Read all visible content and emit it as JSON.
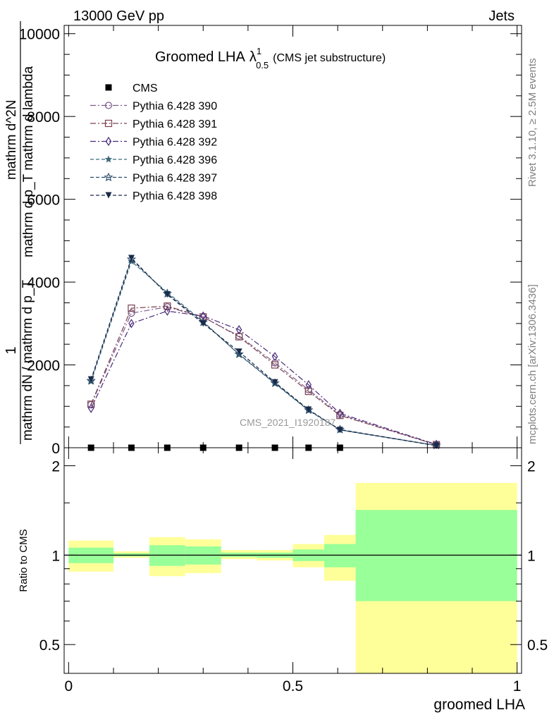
{
  "header": {
    "left": "13000 GeV pp",
    "right": "Jets"
  },
  "side_labels": {
    "rivet": "Rivet 3.1.10, ≥ 2.5M events",
    "site": "mcplots.cern.ch [arXiv:1306.3436]"
  },
  "watermark": "CMS_2021_I1920187",
  "title": {
    "main": "Groomed LHA",
    "lambda": "λ",
    "sup": "1",
    "sub": "0.5",
    "note": "(CMS jet substructure)"
  },
  "ylabel": {
    "numer": "1",
    "denom": "mathrm dN / mathrm d p_T",
    "inner_numer": "mathrm d^2N",
    "inner_denom": "mathrm d p_T mathrm d lambda"
  },
  "ratio_ylabel": "Ratio to CMS",
  "xlabel": "groomed LHA",
  "chart_data": [
    {
      "type": "line",
      "panel": "main",
      "xlim": [
        -0.01,
        1.01
      ],
      "ylim": [
        0,
        10200
      ],
      "yticks": [
        0,
        2000,
        4000,
        6000,
        8000,
        10000
      ],
      "ytick_labels": [
        "0",
        "2000",
        "4000",
        "6000",
        "8000",
        "10000"
      ],
      "x": [
        0.05,
        0.14,
        0.22,
        0.3,
        0.38,
        0.46,
        0.535,
        0.605,
        0.82
      ],
      "series": [
        {
          "name": "CMS",
          "marker": "filled-square",
          "dash": "",
          "color": "#000000",
          "values": [
            0,
            0,
            0,
            0,
            0,
            0,
            0,
            0,
            null
          ]
        },
        {
          "name": "Pythia 6.428 390",
          "marker": "open-circle",
          "dash": "8,3,2,3",
          "color": "#7a5a8a",
          "values": [
            1040,
            3250,
            3400,
            3150,
            2700,
            2050,
            1400,
            800,
            70
          ]
        },
        {
          "name": "Pythia 6.428 391",
          "marker": "open-square",
          "dash": "8,3,2,3",
          "color": "#7a4050",
          "values": [
            1050,
            3370,
            3420,
            3160,
            2680,
            2000,
            1360,
            780,
            75
          ]
        },
        {
          "name": "Pythia 6.428 392",
          "marker": "open-diamond",
          "dash": "8,3,2,3",
          "color": "#4a2a7a",
          "values": [
            950,
            3000,
            3300,
            3180,
            2850,
            2200,
            1520,
            830,
            80
          ]
        },
        {
          "name": "Pythia 6.428 396",
          "marker": "filled-star",
          "dash": "5,3",
          "color": "#3a6a7a",
          "values": [
            1600,
            4500,
            3750,
            3050,
            2250,
            1550,
            900,
            430,
            55
          ]
        },
        {
          "name": "Pythia 6.428 397",
          "marker": "open-star",
          "dash": "5,3",
          "color": "#2a4a6a",
          "values": [
            1620,
            4550,
            3720,
            3030,
            2260,
            1560,
            910,
            440,
            55
          ]
        },
        {
          "name": "Pythia 6.428 398",
          "marker": "filled-triangle-down",
          "dash": "5,3",
          "color": "#1a2a4a",
          "values": [
            1650,
            4580,
            3700,
            3000,
            2320,
            1580,
            920,
            430,
            50
          ]
        }
      ]
    },
    {
      "type": "area",
      "panel": "ratio",
      "ylim": [
        0.4,
        2.3
      ],
      "yscale": "log",
      "yticks": [
        0.5,
        1,
        2
      ],
      "ytick_labels": [
        "0.5",
        "1",
        "2"
      ],
      "xlim": [
        -0.01,
        1.01
      ],
      "xticks": [
        0,
        0.5,
        1
      ],
      "xtick_labels": [
        "0",
        "0.5",
        "1"
      ],
      "reference_line": 1,
      "bands": [
        {
          "x0": 0.0,
          "x1": 0.1,
          "yellow": [
            0.88,
            1.12
          ],
          "green": [
            0.94,
            1.06
          ]
        },
        {
          "x0": 0.1,
          "x1": 0.18,
          "yellow": [
            0.98,
            1.03
          ],
          "green": [
            0.99,
            1.015
          ]
        },
        {
          "x0": 0.18,
          "x1": 0.26,
          "yellow": [
            0.85,
            1.15
          ],
          "green": [
            0.92,
            1.08
          ]
        },
        {
          "x0": 0.26,
          "x1": 0.34,
          "yellow": [
            0.87,
            1.13
          ],
          "green": [
            0.93,
            1.07
          ]
        },
        {
          "x0": 0.34,
          "x1": 0.42,
          "yellow": [
            0.97,
            1.04
          ],
          "green": [
            0.985,
            1.02
          ]
        },
        {
          "x0": 0.42,
          "x1": 0.5,
          "yellow": [
            0.96,
            1.04
          ],
          "green": [
            0.98,
            1.02
          ]
        },
        {
          "x0": 0.5,
          "x1": 0.57,
          "yellow": [
            0.91,
            1.09
          ],
          "green": [
            0.955,
            1.045
          ]
        },
        {
          "x0": 0.57,
          "x1": 0.64,
          "yellow": [
            0.82,
            1.17
          ],
          "green": [
            0.91,
            1.09
          ]
        },
        {
          "x0": 0.64,
          "x1": 1.0,
          "yellow": [
            0.4,
            1.75
          ],
          "green": [
            0.7,
            1.42
          ]
        }
      ]
    }
  ],
  "colors": {
    "yellow_band": "#ffff99",
    "green_band": "#99ff99"
  }
}
